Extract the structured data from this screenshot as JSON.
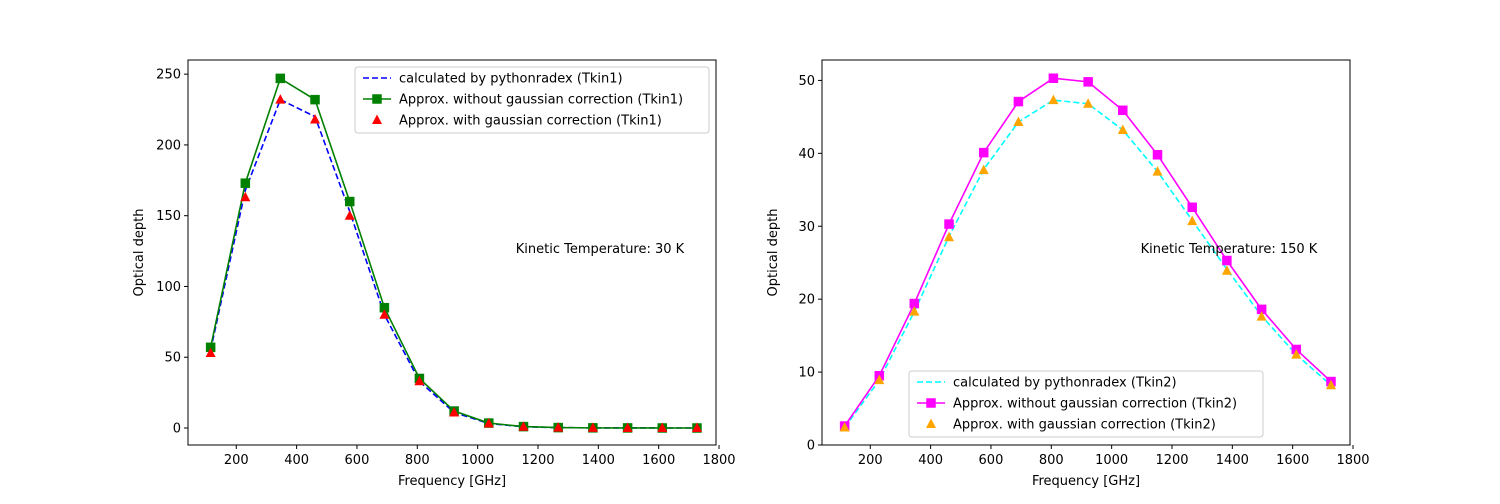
{
  "chart_data": [
    {
      "type": "line",
      "xlabel": "Frequency [GHz]",
      "ylabel": "Optical depth",
      "annotation": "Kinetic Temperature: 30 K",
      "xlim": [
        40,
        1790
      ],
      "ylim": [
        -12,
        260
      ],
      "xticks": [
        200,
        400,
        600,
        800,
        1000,
        1200,
        1400,
        1600,
        1800
      ],
      "yticks": [
        0,
        50,
        100,
        150,
        200,
        250
      ],
      "legend_loc": "upper right",
      "x": [
        115,
        230,
        346,
        461,
        576,
        691,
        807,
        922,
        1037,
        1152,
        1267,
        1382,
        1497,
        1612,
        1727
      ],
      "series": [
        {
          "name": "calculated by pythonradex (Tkin1)",
          "style": "dashed",
          "marker": "none",
          "color": "#0000ff",
          "values": [
            55,
            168,
            232,
            220,
            153,
            80,
            33,
            11,
            3.2,
            0.9,
            0.3,
            0.1,
            0.05,
            0.02,
            0.01
          ]
        },
        {
          "name": "Approx. without gaussian correction (Tkin1)",
          "style": "solid",
          "marker": "square",
          "color": "#008000",
          "values": [
            57,
            173,
            247,
            232,
            160,
            85,
            35,
            12,
            3.5,
            1.0,
            0.3,
            0.1,
            0.05,
            0.02,
            0.01
          ]
        },
        {
          "name": "Approx. with gaussian correction (Tkin1)",
          "style": "none",
          "marker": "triangle",
          "color": "#ff0000",
          "values": [
            53,
            163,
            232,
            218,
            150,
            80,
            33,
            11,
            3.2,
            0.9,
            0.3,
            0.1,
            0.05,
            0.02,
            0.01
          ]
        }
      ]
    },
    {
      "type": "line",
      "xlabel": "Frequency [GHz]",
      "ylabel": "Optical depth",
      "annotation": "Kinetic Temperature: 150 K",
      "xlim": [
        40,
        1790
      ],
      "ylim": [
        0,
        52.8
      ],
      "xticks": [
        200,
        400,
        600,
        800,
        1000,
        1200,
        1400,
        1600,
        1800
      ],
      "yticks": [
        0,
        10,
        20,
        30,
        40,
        50
      ],
      "legend_loc": "lower center",
      "x": [
        115,
        230,
        346,
        461,
        576,
        691,
        807,
        922,
        1037,
        1152,
        1267,
        1382,
        1497,
        1612,
        1727
      ],
      "series": [
        {
          "name": "calculated by pythonradex (Tkin2)",
          "style": "dashed",
          "marker": "none",
          "color": "#00ffff",
          "values": [
            2.4,
            8.9,
            18.3,
            28.6,
            37.8,
            44.3,
            47.3,
            46.8,
            43.2,
            37.5,
            30.8,
            24.1,
            17.7,
            12.4,
            8.2
          ]
        },
        {
          "name": "Approx. without gaussian correction (Tkin2)",
          "style": "solid",
          "marker": "square",
          "color": "#ff00ff",
          "values": [
            2.6,
            9.5,
            19.4,
            30.3,
            40.1,
            47.1,
            50.3,
            49.8,
            45.9,
            39.8,
            32.6,
            25.3,
            18.6,
            13.1,
            8.7
          ]
        },
        {
          "name": "Approx. with gaussian correction (Tkin2)",
          "style": "none",
          "marker": "triangle",
          "color": "#ffa500",
          "values": [
            2.4,
            8.9,
            18.3,
            28.5,
            37.7,
            44.3,
            47.3,
            46.8,
            43.2,
            37.5,
            30.7,
            23.9,
            17.6,
            12.4,
            8.2
          ]
        }
      ]
    }
  ]
}
